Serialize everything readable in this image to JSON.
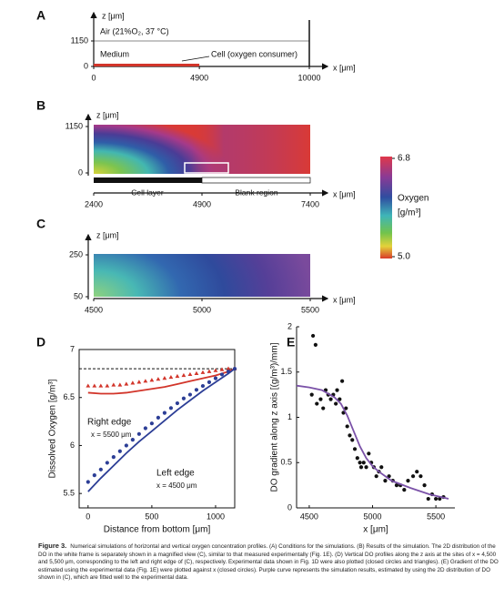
{
  "panel_a": {
    "label": "A",
    "z_label": "z [μm]",
    "x_label": "x [μm]",
    "z_ticks": [
      0,
      1150
    ],
    "x_ticks": [
      0,
      4900,
      10000
    ],
    "air": "Air (21%O₂, 37 °C)",
    "medium": "Medium",
    "cell": "Cell (oxygen consumer)"
  },
  "panel_b": {
    "label": "B",
    "z_label": "z [μm]",
    "x_label": "x [μm]",
    "z_ticks": [
      0,
      1150
    ],
    "x_ticks": [
      2400,
      4900,
      7400
    ],
    "cell_layer": "Cell layer",
    "blank": "Blank region"
  },
  "colorbar": {
    "title": "Oxygen",
    "unit": "[g/m³]",
    "ticks": [
      6.8,
      {
        "value": 5,
        "label": "5.0"
      }
    ]
  },
  "panel_c": {
    "label": "C",
    "z_label": "z [μm]",
    "x_label": "x [μm]",
    "z_ticks": [
      50,
      250
    ],
    "x_ticks": [
      4500,
      5000,
      5500
    ]
  },
  "chart_data": [
    {
      "type": "line",
      "label": "D",
      "y_label": "Dissolved Oxygen [g/m³]",
      "x_label": "Distance from bottom [μm]",
      "xlim": [
        -70,
        1150
      ],
      "xticks": [
        0,
        500,
        1000
      ],
      "ylim": [
        5.35,
        7
      ],
      "yticks": [
        5.5,
        6,
        6.5,
        7
      ],
      "annotations": [
        {
          "text": "Right edge",
          "color": "#d2352a"
        },
        {
          "text": "x = 5500 μm",
          "color": "#d2352a"
        },
        {
          "text": "Left edge",
          "color": "#2c3e96"
        },
        {
          "text": "x = 4500 μm",
          "color": "#2c3e96"
        }
      ],
      "series": [
        {
          "style": "line",
          "dash": true,
          "color": "#111111",
          "x": [
            -70,
            1150
          ],
          "values": [
            6.8,
            6.8
          ]
        },
        {
          "style": "markers",
          "marker": "triangle",
          "color": "#d2352a",
          "x": [
            0,
            50,
            100,
            150,
            200,
            250,
            300,
            350,
            400,
            450,
            500,
            550,
            600,
            650,
            700,
            750,
            800,
            850,
            900,
            950,
            1000,
            1050,
            1100,
            1150
          ],
          "values": [
            6.62,
            6.62,
            6.62,
            6.62,
            6.63,
            6.63,
            6.64,
            6.65,
            6.66,
            6.67,
            6.68,
            6.69,
            6.7,
            6.71,
            6.72,
            6.73,
            6.74,
            6.75,
            6.76,
            6.77,
            6.78,
            6.79,
            6.8,
            6.8
          ]
        },
        {
          "style": "line",
          "color": "#d2352a",
          "x": [
            0,
            100,
            200,
            300,
            400,
            500,
            600,
            700,
            800,
            900,
            1000,
            1100,
            1150
          ],
          "values": [
            6.55,
            6.54,
            6.54,
            6.55,
            6.57,
            6.59,
            6.61,
            6.64,
            6.67,
            6.7,
            6.73,
            6.77,
            6.8
          ]
        },
        {
          "style": "markers",
          "marker": "circle",
          "color": "#2c3e96",
          "x": [
            0,
            50,
            100,
            150,
            200,
            250,
            300,
            350,
            400,
            450,
            500,
            550,
            600,
            650,
            700,
            750,
            800,
            850,
            900,
            950,
            1000,
            1050,
            1100,
            1150
          ],
          "values": [
            5.62,
            5.69,
            5.75,
            5.82,
            5.88,
            5.94,
            6.0,
            6.06,
            6.12,
            6.18,
            6.23,
            6.29,
            6.34,
            6.39,
            6.44,
            6.49,
            6.53,
            6.58,
            6.62,
            6.66,
            6.7,
            6.74,
            6.77,
            6.8
          ]
        },
        {
          "style": "line",
          "color": "#2c3e96",
          "x": [
            0,
            100,
            200,
            300,
            400,
            500,
            600,
            700,
            800,
            900,
            1000,
            1100,
            1150
          ],
          "values": [
            5.52,
            5.66,
            5.79,
            5.92,
            6.04,
            6.15,
            6.26,
            6.37,
            6.47,
            6.57,
            6.66,
            6.75,
            6.8
          ]
        }
      ]
    },
    {
      "type": "scatter",
      "label": "E",
      "y_label": "DO gradient along z axis [(g/m³)/mm]",
      "x_label": "x [μm]",
      "xlim": [
        4400,
        5650
      ],
      "xticks": [
        4500,
        5000,
        5500
      ],
      "ylim": [
        0,
        2
      ],
      "yticks": [
        0,
        0.5,
        1,
        1.5,
        2
      ],
      "series": [
        {
          "style": "markers",
          "marker": "circle",
          "color": "#111111",
          "x": [
            4530,
            4550,
            4520,
            4560,
            4590,
            4610,
            4630,
            4650,
            4670,
            4690,
            4710,
            4720,
            4740,
            4760,
            4770,
            4790,
            4800,
            4820,
            4840,
            4860,
            4880,
            4900,
            4910,
            4930,
            4950,
            4970,
            4990,
            5010,
            5030,
            5050,
            5070,
            5100,
            5130,
            5160,
            5190,
            5220,
            5250,
            5280,
            5320,
            5350,
            5380,
            5410,
            5440,
            5470,
            5500,
            5530,
            5560
          ],
          "values": [
            1.9,
            1.8,
            1.25,
            1.15,
            1.2,
            1.1,
            1.3,
            1.25,
            1.2,
            1.25,
            1.15,
            1.3,
            1.2,
            1.4,
            1.05,
            1.1,
            0.9,
            0.8,
            0.75,
            0.65,
            0.55,
            0.5,
            0.45,
            0.5,
            0.45,
            0.6,
            0.5,
            0.45,
            0.35,
            0.4,
            0.45,
            0.3,
            0.35,
            0.3,
            0.25,
            0.25,
            0.2,
            0.3,
            0.35,
            0.4,
            0.35,
            0.25,
            0.1,
            0.15,
            0.1,
            0.1,
            0.12
          ]
        },
        {
          "style": "line",
          "color": "#7b52a8",
          "x": [
            4400,
            4500,
            4600,
            4700,
            4750,
            4800,
            4850,
            4900,
            4950,
            5000,
            5050,
            5150,
            5300,
            5450,
            5600
          ],
          "values": [
            1.35,
            1.33,
            1.3,
            1.22,
            1.15,
            1.02,
            0.85,
            0.68,
            0.55,
            0.46,
            0.4,
            0.3,
            0.22,
            0.15,
            0.1
          ]
        }
      ]
    }
  ],
  "caption": {
    "label": "Figure 3.",
    "text": "Numerical simulations of horizontal and vertical oxygen concentration profiles. (A) Conditions for the simulations. (B) Results of the simulation. The 2D distribution of the DO in the white frame is separately shown in a magnified view (C), similar to that measured experimentally (Fig. 1E). (D) Vertical DO profiles along the z axis at the sites of x = 4,500 and 5,500 μm, corresponding to the left and right edge of (C), respectively. Experimental data shown in Fig. 1D were also plotted (closed circles and triangles). (E) Gradient of the DO estimated using the experimental data (Fig. 1E) were plotted against x (closed circles). Purple curve represents the simulation results, estimated by using the 2D distribution of DO shown in (C), which are fitted well to the experimental data."
  }
}
